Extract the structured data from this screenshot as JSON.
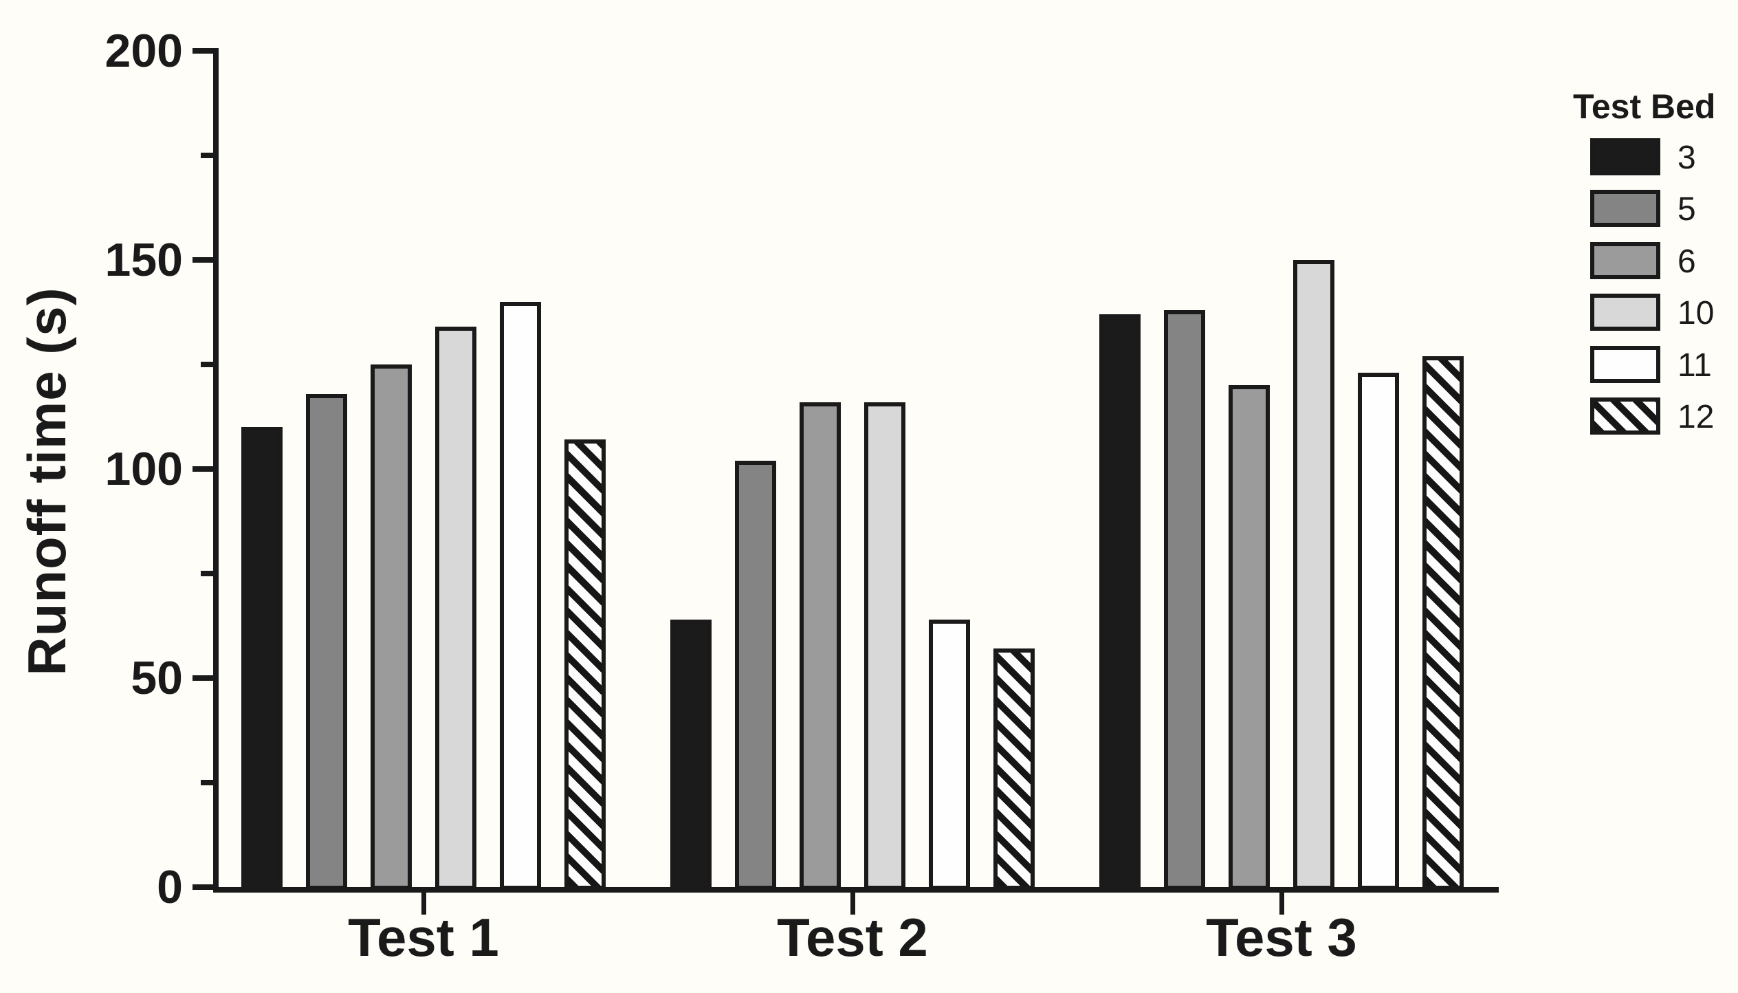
{
  "chart_data": {
    "type": "bar",
    "title": "",
    "categories": [
      "Test 1",
      "Test 2",
      "Test 3"
    ],
    "series": [
      {
        "name": "3",
        "values": [
          110,
          64,
          137
        ],
        "fill": "#1b1b1b",
        "pattern": "solid"
      },
      {
        "name": "5",
        "values": [
          118,
          102,
          138
        ],
        "fill": "#848484",
        "pattern": "solid"
      },
      {
        "name": "6",
        "values": [
          125,
          116,
          120
        ],
        "fill": "#9b9b9b",
        "pattern": "solid"
      },
      {
        "name": "10",
        "values": [
          134,
          116,
          150
        ],
        "fill": "#d8d8d8",
        "pattern": "solid"
      },
      {
        "name": "11",
        "values": [
          140,
          64,
          123
        ],
        "fill": "#fefefe",
        "pattern": "solid"
      },
      {
        "name": "12",
        "values": [
          107,
          57,
          127
        ],
        "fill": "#fdfdfd",
        "pattern": "diagonal-hatch"
      }
    ],
    "xlabel": "",
    "ylabel": "Runoff time (s)",
    "ylim": [
      0,
      200
    ],
    "y_major_step": 50,
    "y_minor_step": 25,
    "y_tick_labels": [
      "0",
      "50",
      "100",
      "150",
      "200"
    ],
    "grid": false,
    "legend": {
      "title": "Test Bed",
      "position": "right",
      "entries": [
        "3",
        "5",
        "6",
        "10",
        "11",
        "12"
      ]
    }
  },
  "colors": {
    "ink": "#1a1a1a",
    "background": "#fffdf8",
    "bar_border": "#1a1a1a",
    "hatch_stripe": "#161616"
  }
}
